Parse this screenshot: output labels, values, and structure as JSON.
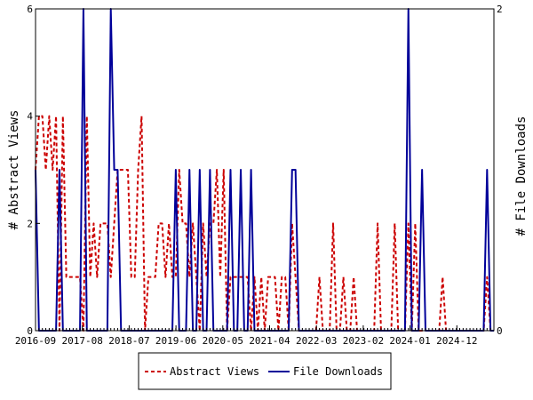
{
  "chart_data": {
    "type": "line",
    "ylabel_left": "# Abstract Views",
    "ylabel_right": "# File Downloads",
    "x_ticks": [
      "2016-09",
      "2017-08",
      "2018-07",
      "2019-06",
      "2020-05",
      "2021-04",
      "2022-03",
      "2023-02",
      "2024-01",
      "2024-12"
    ],
    "ylim_left": [
      0,
      6
    ],
    "ylim_right": [
      0,
      2
    ],
    "yticks_left": [
      0,
      2,
      4,
      6
    ],
    "yticks_right": [
      0,
      2
    ],
    "grid": false,
    "legend_position": "bottom-center",
    "series": [
      {
        "name": "Abstract Views",
        "axis": "left",
        "color": "#cc0000",
        "style": "dashed",
        "values": [
          3,
          4,
          4,
          3,
          4,
          3,
          4,
          0,
          4,
          1,
          1,
          1,
          1,
          1,
          0,
          4,
          1,
          2,
          1,
          2,
          2,
          2,
          1,
          2,
          3,
          3,
          3,
          3,
          1,
          1,
          3,
          4,
          0,
          1,
          1,
          1,
          2,
          2,
          1,
          2,
          1,
          1,
          3,
          2,
          2,
          1,
          2,
          1,
          0,
          2,
          1,
          2,
          2,
          3,
          1,
          3,
          0,
          1,
          1,
          1,
          1,
          1,
          1,
          0,
          1,
          0,
          1,
          0,
          1,
          1,
          1,
          0,
          1,
          1,
          0,
          2,
          1,
          0,
          0,
          0,
          0,
          0,
          0,
          1,
          0,
          0,
          0,
          2,
          0,
          0,
          1,
          0,
          0,
          1,
          0,
          0,
          0,
          0,
          0,
          0,
          2,
          0,
          0,
          0,
          0,
          2,
          0,
          0,
          0,
          2,
          0,
          2,
          0,
          0,
          0,
          0,
          0,
          0,
          0,
          1,
          0,
          0,
          0,
          0,
          0,
          0,
          0,
          0,
          0,
          0,
          0,
          0,
          1,
          0,
          0
        ]
      },
      {
        "name": "File Downloads",
        "axis": "right",
        "color": "#000099",
        "style": "solid",
        "values": [
          1,
          0,
          0,
          0,
          0,
          0,
          0,
          1,
          0,
          0,
          0,
          0,
          0,
          0,
          2,
          0,
          0,
          0,
          0,
          0,
          0,
          0,
          2,
          1,
          1,
          0,
          0,
          0,
          0,
          0,
          0,
          0,
          0,
          0,
          0,
          0,
          0,
          0,
          0,
          0,
          0,
          1,
          0,
          0,
          0,
          1,
          0,
          0,
          1,
          0,
          0,
          1,
          0,
          0,
          0,
          0,
          0,
          1,
          0,
          0,
          1,
          0,
          0,
          1,
          0,
          0,
          0,
          0,
          0,
          0,
          0,
          0,
          0,
          0,
          0,
          1,
          1,
          0,
          0,
          0,
          0,
          0,
          0,
          0,
          0,
          0,
          0,
          0,
          0,
          0,
          0,
          0,
          0,
          0,
          0,
          0,
          0,
          0,
          0,
          0,
          0,
          0,
          0,
          0,
          0,
          0,
          0,
          0,
          0,
          2,
          0,
          0,
          0,
          1,
          0,
          0,
          0,
          0,
          0,
          0,
          0,
          0,
          0,
          0,
          0,
          0,
          0,
          0,
          0,
          0,
          0,
          0,
          1,
          0,
          0
        ]
      }
    ]
  }
}
